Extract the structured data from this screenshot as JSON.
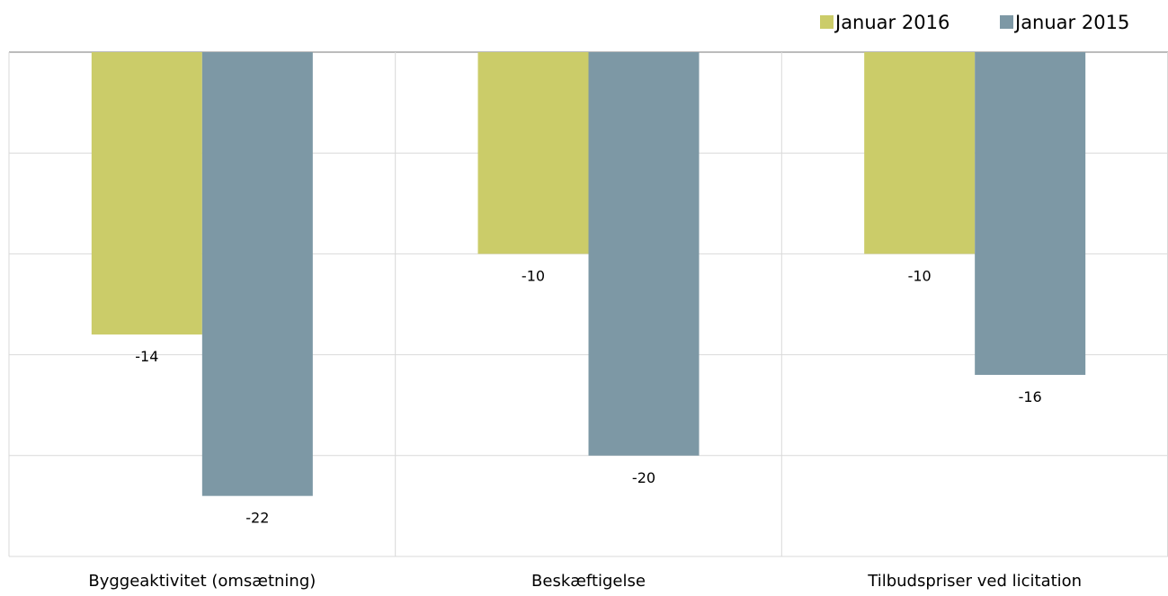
{
  "chart_data": {
    "type": "bar",
    "categories": [
      "Byggeaktivitet (omsætning)",
      "Beskæftigelse",
      "Tilbudspriser ved licitation"
    ],
    "series": [
      {
        "name": "Januar 2016",
        "color": "#cbcc69",
        "values": [
          -14,
          -10,
          -10
        ]
      },
      {
        "name": "Januar 2015",
        "color": "#7d98a5",
        "values": [
          -22,
          -20,
          -16
        ]
      }
    ],
    "ylim": [
      -25,
      0
    ],
    "grid": true,
    "legend_position": "top-right",
    "data_labels": true
  }
}
